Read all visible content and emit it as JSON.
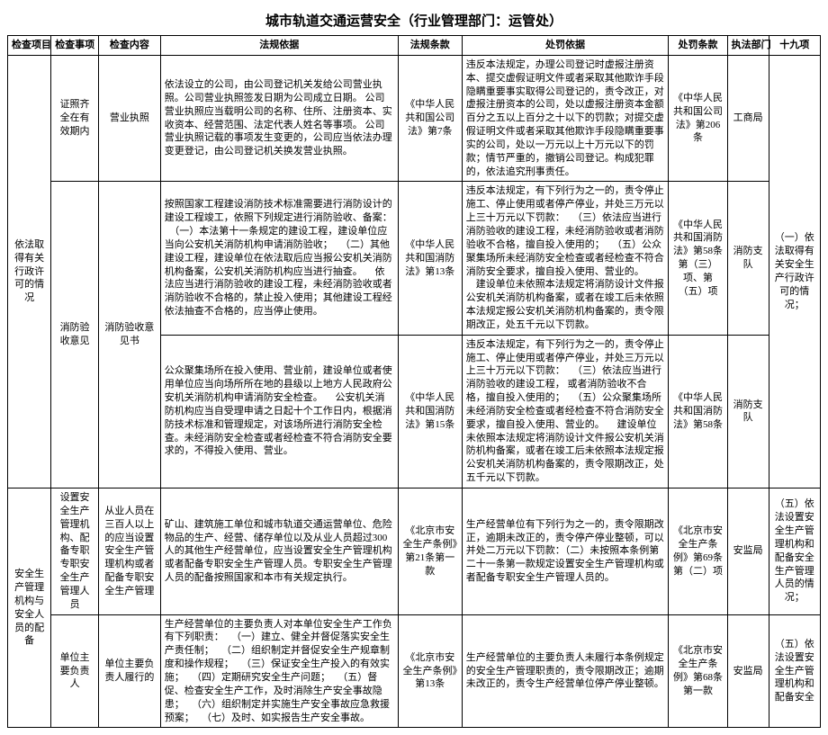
{
  "title": "城市轨道交通运营安全（行业管理部门：运管处）",
  "headers": {
    "check_project": "检查项目",
    "check_item": "检查事项",
    "check_content": "检查内容",
    "law_basis": "法规依据",
    "law_clause": "法规条款",
    "penalty_basis": "处罚依据",
    "penalty_clause": "处罚条款",
    "enforce_dept": "执法部门",
    "nineteen": "十九项"
  },
  "group1": {
    "check_project": "依法取得有关行政许可的情况",
    "nineteen": "（一）依法取得有关安全生产行政许可的情况；",
    "row1": {
      "check_item": "证照齐全在有效期内",
      "check_content": "营业执照",
      "law_basis": "依法设立的公司，由公司登记机关发给公司营业执照。公司营业执照签发日期为公司成立日期。\n公司营业执照应当载明公司的名称、住所、注册资本、实收资本、经营范围、法定代表人姓名等事项。\n公司营业执照记载的事项发生变更的，公司应当依法办理变更登记，由公司登记机关换发营业执照。",
      "law_clause": "《中华人民共和国公司法》第7条",
      "penalty_basis": "违反本法规定，办理公司登记时虚报注册资本、提交虚假证明文件或者采取其他欺诈手段隐瞒重要事实取得公司登记的，责令改正，对虚报注册资本的公司，处以虚报注册资本金额百分之五以上百分之十以下的罚款；对提交虚假证明文件或者采取其他欺诈手段隐瞒重要事实的公司，处以一万元以上十万元以下的罚款；情节严重的，撤销公司登记。构成犯罪的，依法追究刑事责任。",
      "penalty_clause": "《中华人民共和国公司法》第206条",
      "enforce_dept": "工商局"
    },
    "row2": {
      "check_item": "消防验收意见",
      "check_content": "消防验收意见书",
      "law_basis": "按照国家工程建设消防技术标准需要进行消防设计的建设工程竣工，依照下列规定进行消防验收、备案：\n　（一）本法第十一条规定的建设工程，建设单位应当向公安机关消防机构申请消防验收；\n　（二）其他建设工程，建设单位在依法取后应当报公安机关消防机构备案，公安机关消防机构应当进行抽查。\n　依法应当进行消防验收的建设工程，未经消防验收或者消防验收不合格的，禁止投入使用；其他建设工程经依法抽查不合格的，应当停止使用。",
      "law_clause": "《中华人民共和国消防法》第13条",
      "penalty_basis": "违反本法规定，有下列行为之一的，责令停止施工、停止使用或者停产停业，并处三万元以上三十万元以下罚款：\n　（三）依法应当进行消防验收的建设工程，未经消防验收或者消防验收不合格，擅自投入使用的；\n　（五）公众聚集场所未经消防安全检查或者经检查不符合消防安全要求，擅自投入使用、营业的。\n　建设单位未依照本法规定将消防设计文件报公安机关消防机构备案，或者在竣工后未依照本法规定报公安机关消防机构备案的，责令限期改正，处五千元以下罚款。",
      "penalty_clause": "《中华人民共和国消防法》第58条第（三）项、第（五）项",
      "enforce_dept": "消防支队"
    },
    "row3": {
      "law_basis": "公众聚集场所在投入使用、营业前，建设单位或者使用单位应当向场所所在地的县级以上地方人民政府公安机关消防机构申请消防安全检查。\n　公安机关消防机构应当自受理申请之日起十个工作日内，根据消防技术标准和管理规定，对该场所进行消防安全检查。未经消防安全检查或者经检查不符合消防安全要求的，不得投入使用、营业。",
      "law_clause": "《中华人民共和国消防法》第15条",
      "penalty_basis": "违反本法规定，有下列行为之一的，责令停止施工、停止使用或者停产停业，并处三万元以上三十万元以下罚款：\n　（三）依法应当进行消防验收的建设工程，\n或者消防验收不合格，擅自投入使用的；\n　（五）公众聚集场所未经消防安全检查或者经检查不符合消防安全要求，擅自投入使用、营业的。\n　建设单位未依照本法规定将消防设计文件报公安机关消防机构备案，或者在竣工后未依照本法规定报公安机关消防机构备案的，责令限期改正，处五千元以下罚款。",
      "penalty_clause": "《中华人民共和国消防法》第58条",
      "enforce_dept": "消防支队"
    }
  },
  "group2": {
    "check_project": "安全生产管理机构与安全人员的配备",
    "nineteen": "（五）依法设置安全生产管理机构和配备安全生产管理人员的情况；",
    "row1": {
      "check_item": "设置安全生产管理机构、配备专职专职安全生产管理人员",
      "check_content": "从业人员在三百人以上的应当设置安全生产管理机构或者配备专职安全生产管理",
      "law_basis": "矿山、建筑施工单位和城市轨道交通运营单位、危险物品的生产、经营、储存单位以及从业人员超过300人的其他生产经营单位，应当设置安全生产管理机构或者配备专职安全生产管理人员。专职安全生产管理人员的配备按照国家和本市有关规定执行。",
      "law_clause": "《北京市安全生产条例》第21条第一款",
      "penalty_basis": "生产经营单位有下列行为之一的，责令限期改正，逾期未改正的，责令停产停业整顿，可以并处二万元以下罚款：（二）未按照本条例第二十一条第一款规定设置安全生产管理机构或者配备专职安全生产管理人员的。",
      "penalty_clause": "《北京市安全生产条例》第69条第（二）项",
      "enforce_dept": "安监局"
    },
    "row2": {
      "check_item": "单位主要负责人",
      "check_content": "单位主要负责人履行的",
      "law_basis": "生产经营单位的主要负责人对本单位安全生产工作负有下列职责：\n　（一）建立、健全并督促落实安全生产责任制；\n　（二）组织制定并督促安全生产规章制度和操作规程；\n　（三）保证安全生产投入的有效实施；\n　（四）定期研究安全生产问题；\n　（五）督促、检查安全生产工作，及时消除生产安全事故隐患；\n　（六）组织制定并实施生产安全事故应急救援预案；\n　（七）及时、如实报告生产安全事故。",
      "law_clause": "《北京市安全生产条例》第13条",
      "penalty_basis": "生产经营单位的主要负责人未履行本条例规定的安全生产管理职责的，责令限期改正；逾期未改正的，责令生产经营单位停产停业整顿。",
      "penalty_clause": "《北京市安全生产条例》第68条第一款",
      "enforce_dept": "安监局"
    },
    "nineteen2": "（五）依法设置安全生产管理机构和配备安全"
  }
}
